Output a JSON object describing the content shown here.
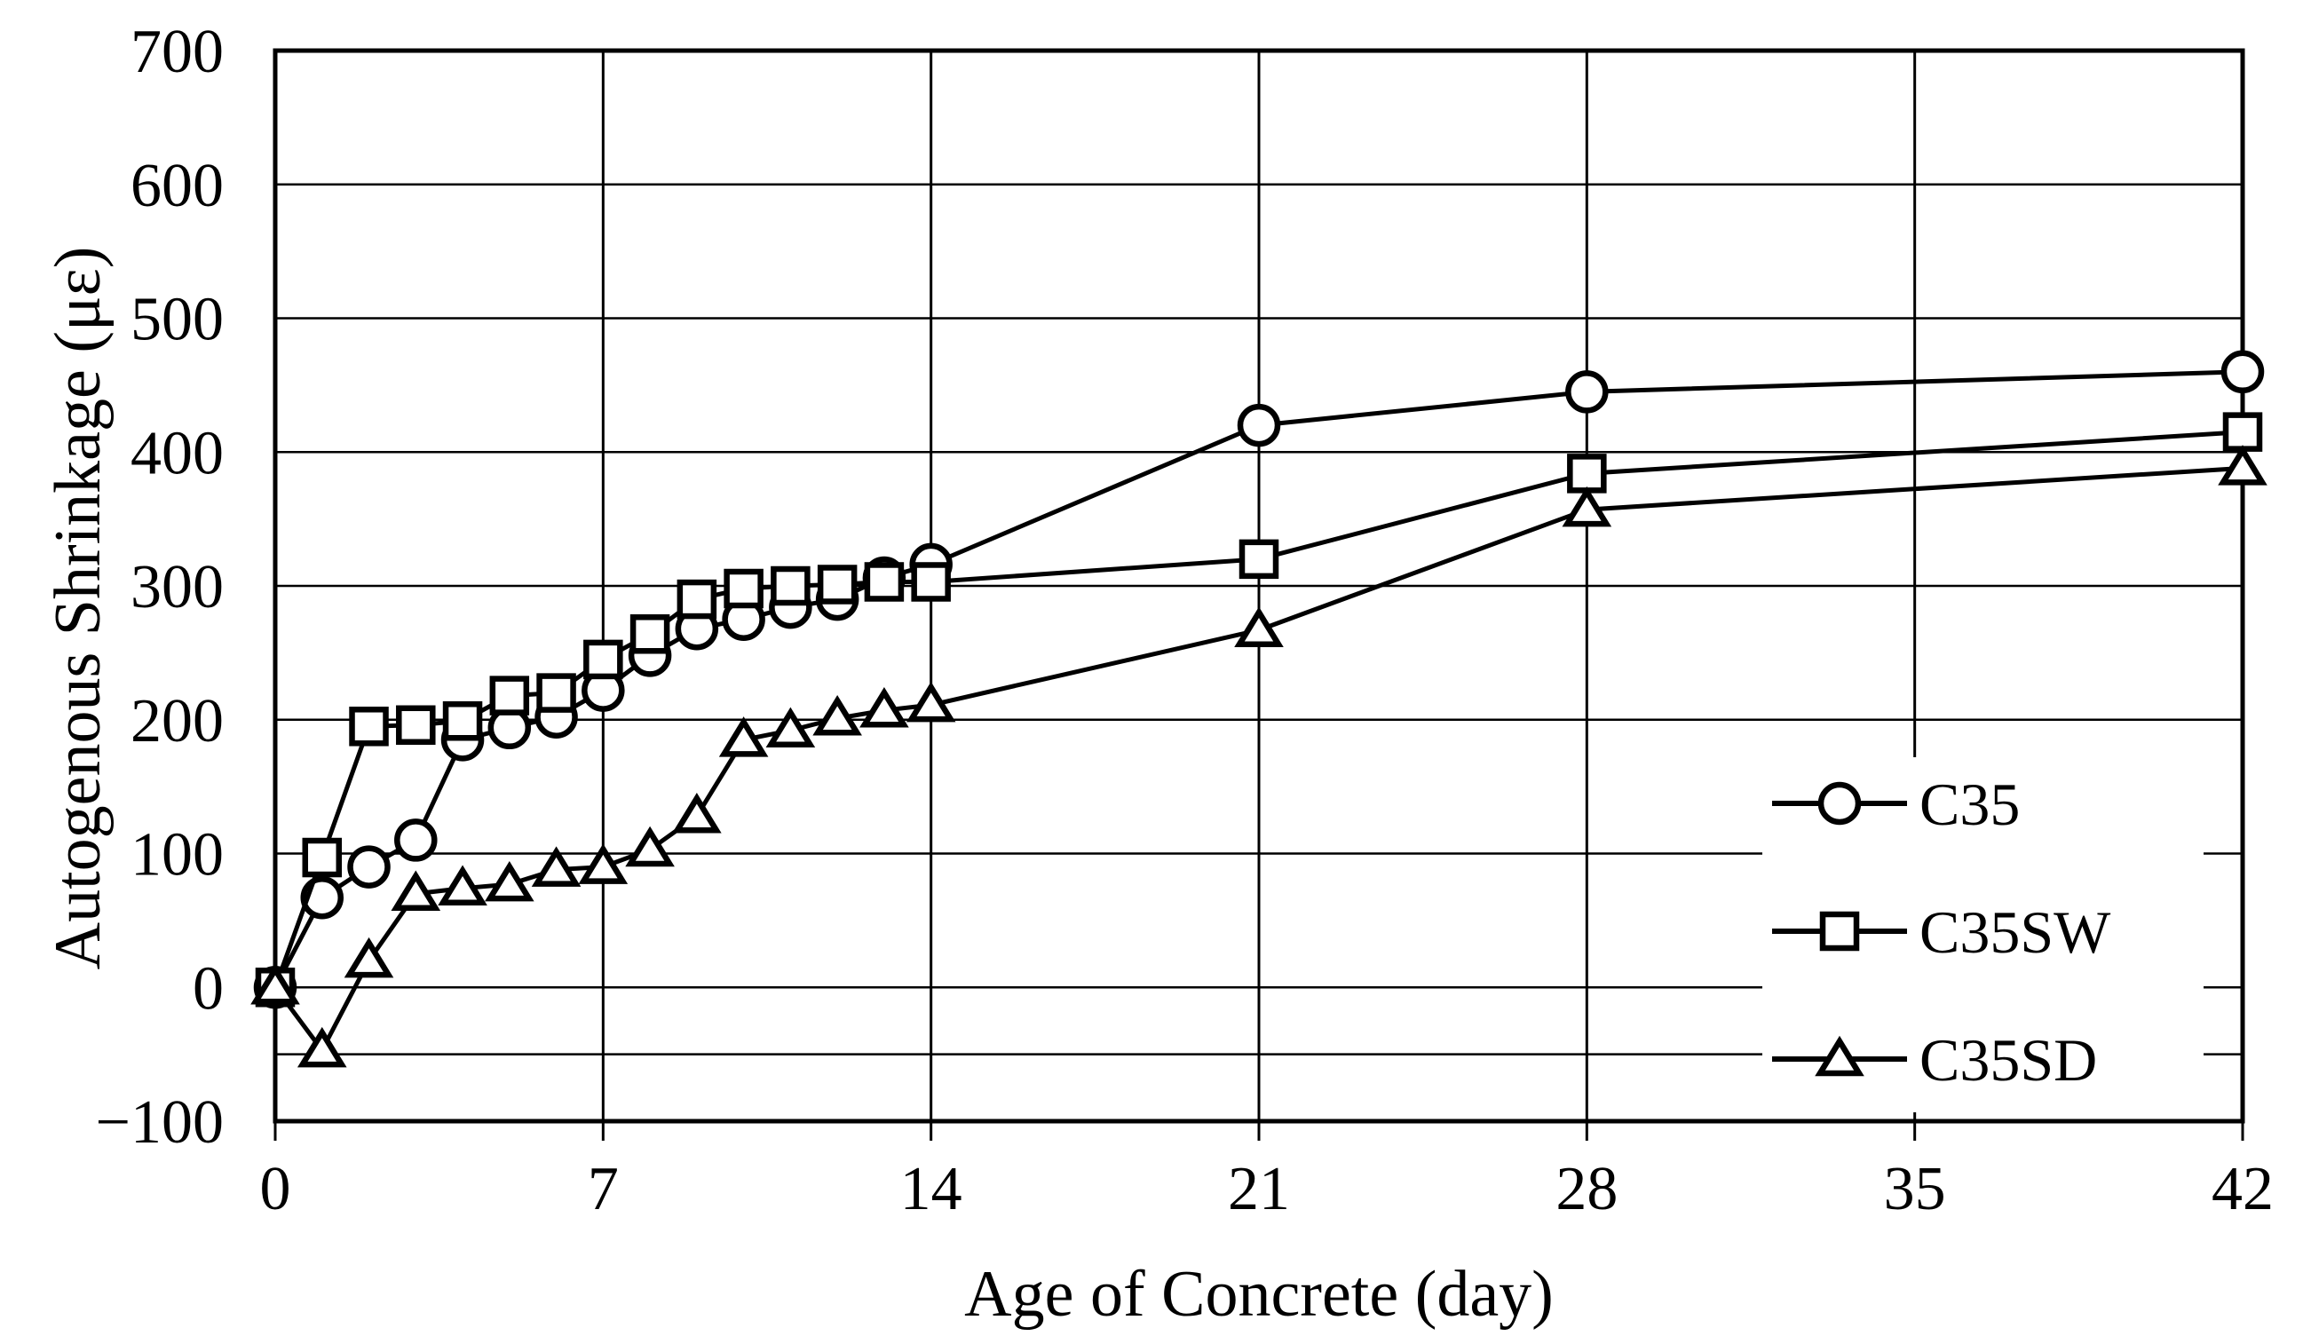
{
  "figure": {
    "background": "#ffffff",
    "ink": "#000000"
  },
  "chart_data": {
    "type": "line",
    "title": "",
    "xlabel": "Age of Concrete (day)",
    "ylabel": "Autogenous Shrinkage (με)",
    "xlim": [
      0,
      42
    ],
    "ylim": [
      -100,
      700
    ],
    "xticks": [
      0,
      7,
      14,
      21,
      28,
      35,
      42
    ],
    "xtick_labels": [
      "0",
      "7",
      "14",
      "21",
      "28",
      "35",
      "42"
    ],
    "yticks": [
      -100,
      0,
      100,
      200,
      300,
      400,
      500,
      600,
      700
    ],
    "ytick_labels": [
      "−100",
      "0",
      "100",
      "200",
      "300",
      "400",
      "500",
      "600",
      "700"
    ],
    "extra_gridlines_y": [
      -50
    ],
    "grid": "both",
    "legend_position": "inside-lower-right",
    "series": [
      {
        "name": "C35",
        "marker": "circle",
        "x": [
          0,
          1,
          2,
          3,
          4,
          5,
          6,
          7,
          8,
          9,
          10,
          11,
          12,
          13,
          14,
          21,
          28,
          42
        ],
        "y": [
          0,
          67,
          90,
          110,
          185,
          194,
          202,
          222,
          248,
          268,
          275,
          284,
          290,
          306,
          316,
          420,
          445,
          460
        ]
      },
      {
        "name": "C35SW",
        "marker": "square",
        "x": [
          0,
          1,
          2,
          3,
          4,
          5,
          6,
          7,
          8,
          9,
          10,
          11,
          12,
          13,
          14,
          21,
          28,
          42
        ],
        "y": [
          0,
          97,
          195,
          196,
          199,
          218,
          220,
          245,
          264,
          290,
          298,
          300,
          301,
          303,
          303,
          320,
          384,
          415
        ]
      },
      {
        "name": "C35SD",
        "marker": "triangle",
        "x": [
          0,
          1,
          2,
          3,
          4,
          5,
          6,
          7,
          8,
          9,
          10,
          11,
          12,
          13,
          14,
          21,
          28,
          42
        ],
        "y": [
          0,
          -47,
          20,
          70,
          74,
          77,
          88,
          90,
          103,
          128,
          185,
          192,
          201,
          207,
          211,
          267,
          357,
          388
        ]
      }
    ]
  }
}
